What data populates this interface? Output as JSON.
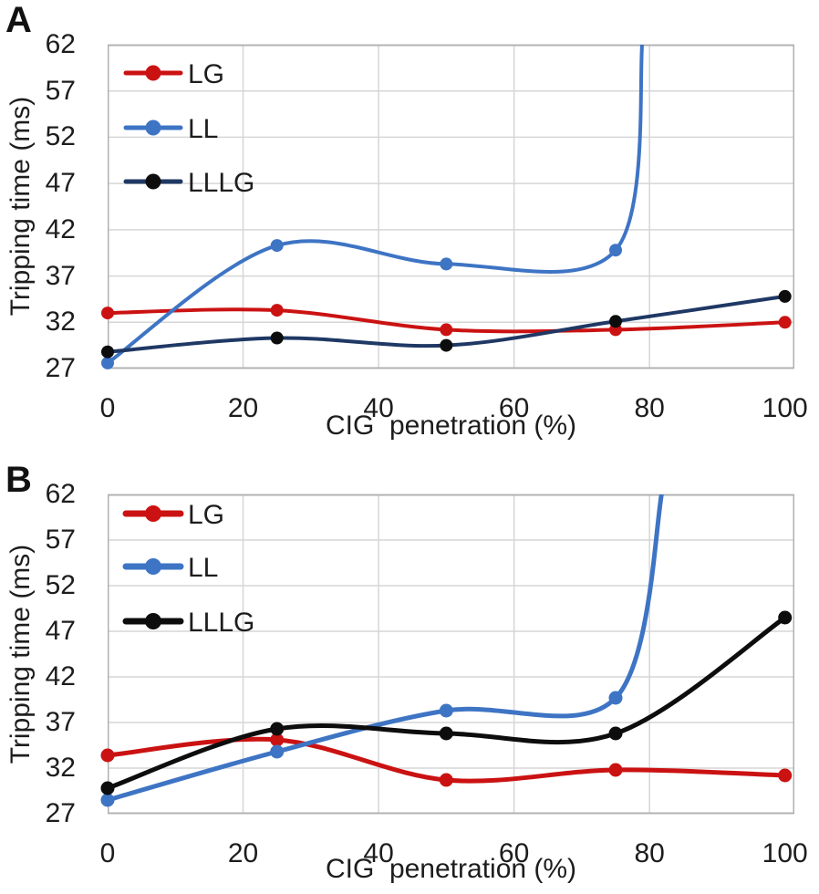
{
  "figure": {
    "background": "#ffffff",
    "text_color": "#1d1d1d",
    "grid_color": "#d6d6d6",
    "border_color": "#b0b0b0"
  },
  "chart_data": [
    {
      "type": "line",
      "panel_label": "A",
      "xlabel": "CIG  penetration (%)",
      "ylabel": "Tripping time (ms)",
      "x_ticks": [
        0,
        20,
        40,
        60,
        80,
        100
      ],
      "y_ticks": [
        62,
        57,
        52,
        47,
        42,
        37,
        32,
        27
      ],
      "xlim": [
        0,
        101.5
      ],
      "ylim": [
        27,
        62
      ],
      "grid": true,
      "smooth": true,
      "legend_position": "inside-top-left",
      "x": [
        0,
        25,
        50,
        75,
        100
      ],
      "series": [
        {
          "name": "LG",
          "line_color": "#cb1212",
          "marker_color": "#cb1212",
          "values": [
            33.0,
            33.3,
            31.2,
            31.2,
            32.0
          ]
        },
        {
          "name": "LL",
          "line_color": "#3e74c4",
          "marker_color": "#3e74c4",
          "values": [
            27.6,
            40.3,
            38.3,
            39.8,
            null
          ],
          "offscale_exit": {
            "x": 79,
            "y": 63
          }
        },
        {
          "name": "LLLG",
          "line_color": "#1f3864",
          "marker_color": "#0d0d0d",
          "values": [
            28.8,
            30.3,
            29.5,
            32.1,
            34.8
          ]
        }
      ]
    },
    {
      "type": "line",
      "panel_label": "B",
      "xlabel": "CIG  penetration (%)",
      "ylabel": "Tripping time (ms)",
      "x_ticks": [
        0,
        20,
        40,
        60,
        80,
        100
      ],
      "y_ticks": [
        62,
        57,
        52,
        47,
        42,
        37,
        32,
        27
      ],
      "xlim": [
        0,
        101.5
      ],
      "ylim": [
        27,
        62
      ],
      "grid": true,
      "smooth": true,
      "legend_position": "inside-top-left",
      "x": [
        0,
        25,
        50,
        75,
        100
      ],
      "series": [
        {
          "name": "LG",
          "line_color": "#cb1212",
          "marker_color": "#cb1212",
          "values": [
            33.4,
            35.1,
            30.7,
            31.8,
            31.2
          ]
        },
        {
          "name": "LL",
          "line_color": "#3e74c4",
          "marker_color": "#3e74c4",
          "values": [
            28.5,
            33.8,
            38.3,
            39.7,
            null
          ],
          "offscale_exit": {
            "x": 82,
            "y": 63
          }
        },
        {
          "name": "LLLG",
          "line_color": "#0d0d0d",
          "marker_color": "#0d0d0d",
          "values": [
            29.8,
            36.3,
            35.8,
            35.8,
            48.5
          ]
        }
      ]
    }
  ]
}
